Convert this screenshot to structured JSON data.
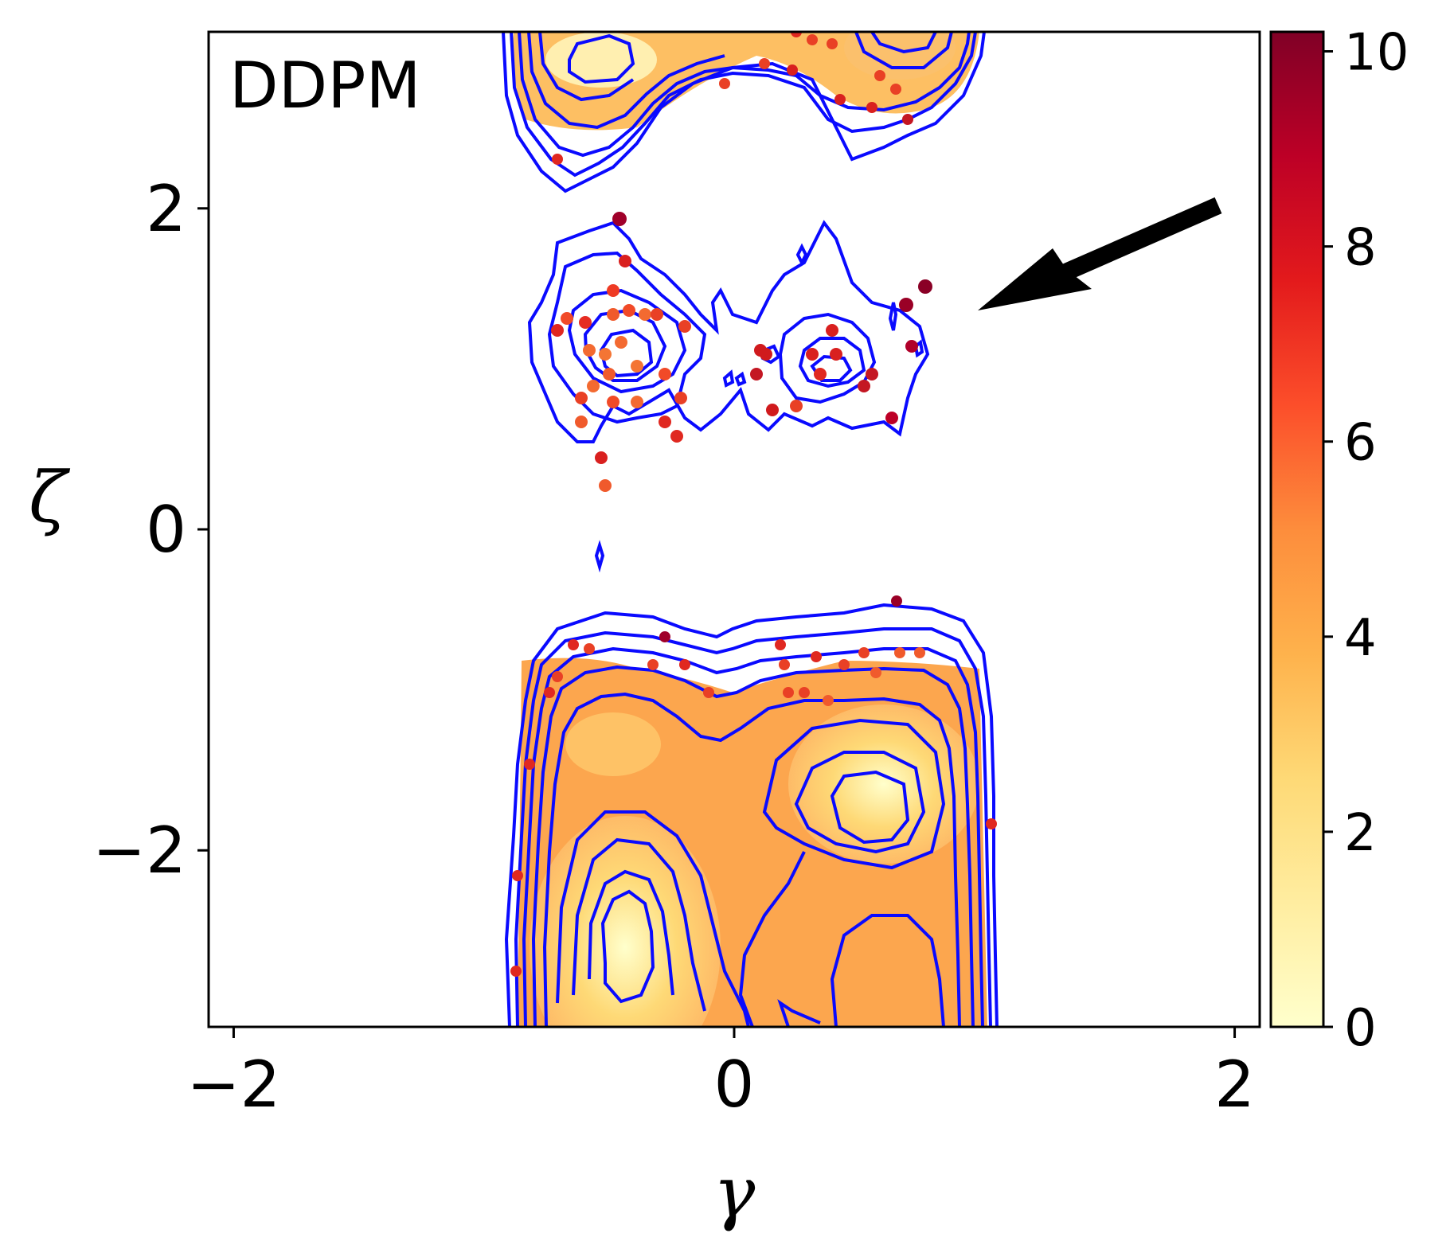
{
  "chart_data": {
    "type": "contour",
    "panel_label": "DDPM",
    "xlabel": "γ",
    "ylabel": "ζ",
    "xlim": [
      -2.1,
      2.1
    ],
    "ylim": [
      -3.1,
      3.1
    ],
    "x_ticks": [
      -2,
      0,
      2
    ],
    "x_tick_labels": [
      "−2",
      "0",
      "2"
    ],
    "y_ticks": [
      -2,
      0,
      2
    ],
    "y_tick_labels": [
      "−2",
      "0",
      "2"
    ],
    "colorbar": {
      "range": [
        0,
        10.2
      ],
      "ticks": [
        0,
        2,
        4,
        6,
        8,
        10
      ],
      "tick_labels": [
        "0",
        "2",
        "4",
        "6",
        "8",
        "10"
      ],
      "colormap": "YlOrRd",
      "color_stops": [
        "#ffffcc",
        "#ffeda0",
        "#fed976",
        "#feb24c",
        "#fd8d3c",
        "#fc4e2a",
        "#e31a1c",
        "#bd0026",
        "#800026"
      ]
    },
    "contour_color": "#0a0aff",
    "annotation": {
      "type": "arrow",
      "points_to": [
        1.0,
        1.35
      ]
    },
    "free_energy_minima": [
      {
        "x": -0.6,
        "y": 2.9,
        "value": 0.3
      },
      {
        "x": 0.7,
        "y": 2.9,
        "value": 2.5
      },
      {
        "x": -0.55,
        "y": 1.0,
        "value": 6.3
      },
      {
        "x": 0.4,
        "y": 1.0,
        "value": 7.5
      },
      {
        "x": 0.65,
        "y": -1.7,
        "value": 0.4
      },
      {
        "x": -0.55,
        "y": -2.7,
        "value": 0.2
      }
    ]
  }
}
